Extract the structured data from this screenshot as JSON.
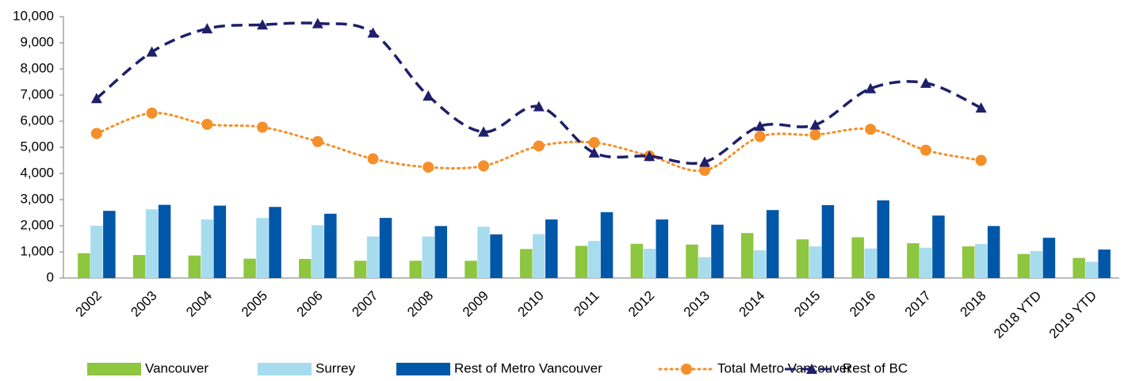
{
  "chart_data": {
    "type": "bar-line",
    "categories": [
      "2002",
      "2003",
      "2004",
      "2005",
      "2006",
      "2007",
      "2008",
      "2009",
      "2010",
      "2011",
      "2012",
      "2013",
      "2014",
      "2015",
      "2016",
      "2017",
      "2018",
      "2018 YTD",
      "2019 YTD"
    ],
    "series": [
      {
        "name": "Vancouver",
        "type": "bar",
        "color": "#8dc63f",
        "values": [
          950,
          880,
          860,
          740,
          730,
          660,
          660,
          660,
          1110,
          1230,
          1310,
          1280,
          1720,
          1480,
          1560,
          1330,
          1210,
          920,
          770
        ]
      },
      {
        "name": "Surrey",
        "type": "bar",
        "color": "#a7dcef",
        "values": [
          2000,
          2630,
          2240,
          2300,
          2020,
          1590,
          1590,
          1960,
          1680,
          1420,
          1120,
          800,
          1060,
          1210,
          1130,
          1160,
          1300,
          1030,
          620
        ]
      },
      {
        "name": "Rest of Metro Vancouver",
        "type": "bar",
        "color": "#0057a8",
        "values": [
          2570,
          2800,
          2770,
          2720,
          2460,
          2300,
          1990,
          1670,
          2240,
          2520,
          2240,
          2040,
          2600,
          2790,
          2970,
          2390,
          1990,
          1540,
          1090
        ]
      },
      {
        "name": "Total Metro Vancouver",
        "type": "line",
        "color": "#f58f2a",
        "values": [
          5530,
          6310,
          5880,
          5770,
          5220,
          4560,
          4240,
          4290,
          5050,
          5180,
          4670,
          4120,
          5410,
          5480,
          5690,
          4890,
          4500,
          null,
          null
        ]
      },
      {
        "name": "Rest of BC",
        "type": "line",
        "color": "#1f1f6b",
        "values": [
          6870,
          8650,
          9540,
          9690,
          9740,
          9380,
          6970,
          5590,
          6560,
          4790,
          4660,
          4440,
          5810,
          5860,
          7250,
          7460,
          6510,
          null,
          null
        ]
      }
    ],
    "ylim": [
      0,
      10000
    ],
    "yticks": [
      0,
      {
        "value": 1000,
        "label": "1,000"
      },
      {
        "value": 2000,
        "label": "2,000"
      },
      {
        "value": 3000,
        "label": "3,000"
      },
      {
        "value": 4000,
        "label": "4,000"
      },
      {
        "value": 5000,
        "label": "5,000"
      },
      {
        "value": 6000,
        "label": "6,000"
      },
      {
        "value": 7000,
        "label": "7,000"
      },
      {
        "value": 8000,
        "label": "8,000"
      },
      {
        "value": 9000,
        "label": "9,000"
      },
      {
        "value": 10000,
        "label": "10,000"
      }
    ]
  }
}
